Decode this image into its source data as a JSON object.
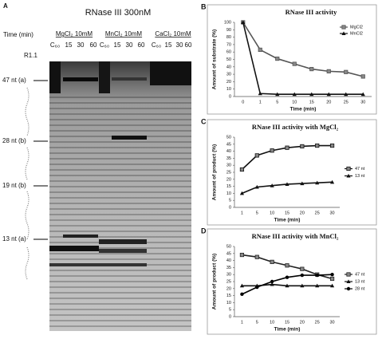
{
  "gel": {
    "panel": "A",
    "title": "RNase III 300nM",
    "time_label": "Time (min)",
    "conditions": [
      "MgCl₂ 10mM",
      "MnCl₂ 10mM",
      "CaCl₂ 10mM"
    ],
    "lanes": [
      "C₆₀",
      "15",
      "30",
      "60",
      "C₆₀",
      "15",
      "30",
      "60",
      "C₆₀",
      "15",
      "30",
      "60"
    ],
    "construct": "R1.1",
    "markers": [
      "47 nt (a)",
      "28 nt (b)",
      "19 nt (b)",
      "13 nt (a)"
    ]
  },
  "chart_data": [
    {
      "type": "line",
      "panel": "B",
      "title": "RNase III activity",
      "x_label": "Time (min)",
      "y_label": "Amount of substrate (%)",
      "categories": [
        "0",
        "1",
        "5",
        "10",
        "15",
        "20",
        "25",
        "30"
      ],
      "ylim": [
        0,
        100
      ],
      "yticks": [
        0,
        10,
        20,
        30,
        40,
        50,
        60,
        70,
        80,
        90,
        100
      ],
      "grid": false,
      "legend": "upper right",
      "series": [
        {
          "name": "MgCl2",
          "color": "#555555",
          "marker": "square",
          "values": [
            100,
            63,
            51,
            44,
            37,
            34,
            33,
            27
          ]
        },
        {
          "name": "MnCl2",
          "color": "#111111",
          "marker": "triangle",
          "values": [
            100,
            4,
            3,
            3,
            3,
            3,
            3,
            3
          ]
        }
      ]
    },
    {
      "type": "line",
      "panel": "C",
      "title": "RNase III activity with MgCl₂",
      "x_label": "Time (min)",
      "y_label": "Amount of product (%)",
      "categories": [
        "1",
        "5",
        "10",
        "15",
        "20",
        "25",
        "30"
      ],
      "ylim": [
        0,
        50
      ],
      "yticks": [
        0,
        5,
        10,
        15,
        20,
        25,
        30,
        35,
        40,
        45,
        50
      ],
      "grid": false,
      "legend": "center right",
      "series": [
        {
          "name": "47 nt",
          "color": "#111111",
          "marker": "square",
          "values": [
            27,
            37,
            40.5,
            42.5,
            43.5,
            44,
            44
          ]
        },
        {
          "name": "13 nt",
          "color": "#111111",
          "marker": "triangle",
          "values": [
            10,
            14.5,
            15.5,
            16.5,
            17,
            17.5,
            18
          ]
        }
      ]
    },
    {
      "type": "line",
      "panel": "D",
      "title": "RNase III activity with MnCl₂",
      "x_label": "Time (min)",
      "y_label": "Amount of product (%)",
      "categories": [
        "1",
        "5",
        "10",
        "15",
        "20",
        "25",
        "30"
      ],
      "ylim": [
        0,
        50
      ],
      "yticks": [
        0,
        5,
        10,
        15,
        20,
        25,
        30,
        35,
        40,
        45,
        50
      ],
      "grid": false,
      "legend": "center right",
      "series": [
        {
          "name": "47 nt",
          "color": "#222222",
          "marker": "square",
          "values": [
            44,
            42.5,
            39,
            36.5,
            34,
            30,
            27
          ]
        },
        {
          "name": "13 nt",
          "color": "#111111",
          "marker": "triangle",
          "values": [
            22,
            22,
            23,
            22,
            22,
            22,
            22
          ]
        },
        {
          "name": "28 nt",
          "color": "#000000",
          "marker": "circle",
          "values": [
            16,
            21,
            25,
            28,
            29.5,
            29.5,
            30
          ]
        }
      ]
    }
  ]
}
